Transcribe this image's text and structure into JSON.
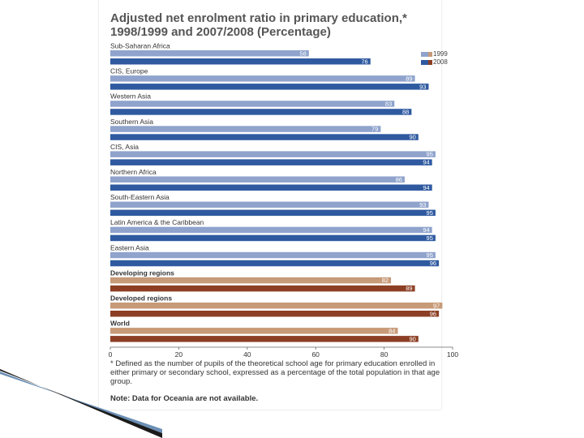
{
  "title_lines": [
    "Adjusted net enrolment ratio in primary education,*",
    "1998/1999 and 2007/2008 (Percentage)"
  ],
  "legend": [
    {
      "label": "1999",
      "color_regions": "#8fa3cc",
      "color_groups": "#c79a78"
    },
    {
      "label": "2008",
      "color_regions": "#2f5aa0",
      "color_groups": "#8c3f24"
    }
  ],
  "footnote": "* Defined as the number of pupils of the theoretical school age for primary education enrolled in either primary or secondary school, expressed as a percentage of the total population in that age group.",
  "note": "Note: Data for Oceania are not available.",
  "chart_data": {
    "type": "bar",
    "orientation": "horizontal",
    "categories": [
      "Sub-Saharan Africa",
      "CIS, Europe",
      "Western Asia",
      "Southern Asia",
      "CIS, Asia",
      "Northern Africa",
      "South-Eastern Asia",
      "Latin America & the Caribbean",
      "Eastern Asia",
      "Developing regions",
      "Developed regions",
      "World"
    ],
    "bold_categories": [
      "Developing regions",
      "Developed regions",
      "World"
    ],
    "series": [
      {
        "name": "1999",
        "values": [
          58,
          89,
          83,
          79,
          95,
          86,
          93,
          94,
          95,
          82,
          97,
          84
        ]
      },
      {
        "name": "2008",
        "values": [
          76,
          93,
          88,
          90,
          94,
          94,
          95,
          95,
          96,
          89,
          96,
          90
        ]
      }
    ],
    "colors": {
      "regions_1999": "#8fa3cc",
      "regions_2008": "#2f5aa0",
      "groups_1999": "#c79a78",
      "groups_2008": "#8c3f24"
    },
    "xlim": [
      0,
      100
    ],
    "xticks": [
      0,
      20,
      40,
      60,
      80,
      100
    ],
    "legend_position": "top-right",
    "grid": false
  }
}
